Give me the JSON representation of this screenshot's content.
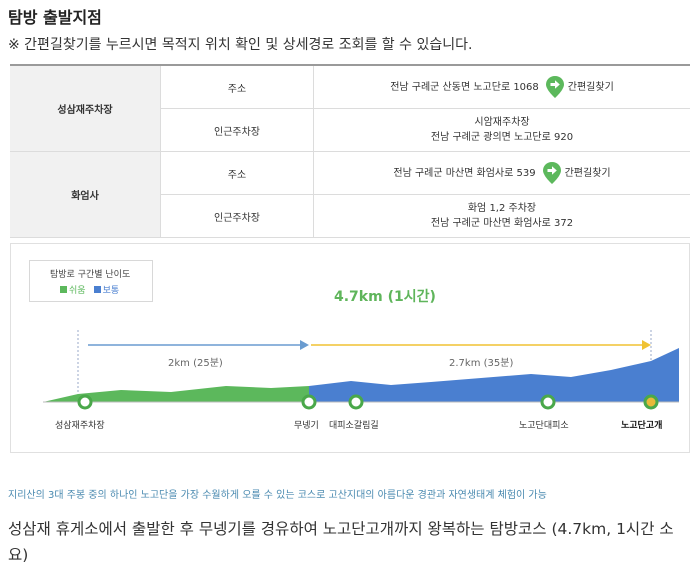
{
  "header": {
    "title": "탐방 출발지점",
    "notice": "※ 간편길찾기를 누르시면 목적지 위치 확인 및 상세경로 조회를 할 수 있습니다."
  },
  "parking": {
    "lots": [
      {
        "name": "성삼재주차장",
        "address_label": "주소",
        "address": "전남 구례군 산동면 노고단로 1068",
        "nav_label": "간편길찾기",
        "nearby_label": "인근주차장",
        "nearby_line1": "시암재주차장",
        "nearby_line2": "전남 구례군 광의면 노고단로 920"
      },
      {
        "name": "화엄사",
        "address_label": "주소",
        "address": "전남 구례군 마산면 화엄사로 539",
        "nav_label": "간편길찾기",
        "nearby_label": "인근주차장",
        "nearby_line1": "화엄 1,2 주차장",
        "nearby_line2": "전남 구례군 마산면 화엄사로 372"
      }
    ]
  },
  "difficulty": {
    "legend_title": "탐방로 구간별 난이도",
    "easy_label": "쉬움",
    "normal_label": "보통",
    "easy_color": "#5cb85c",
    "normal_color": "#4a7fd0",
    "total": "4.7km (1시간)",
    "segment1": "2km (25분)",
    "segment2": "2.7km (35분)",
    "points": [
      "성삼재주차장",
      "무넹기",
      "대피소갈림길",
      "노고단대피소",
      "노고단고개"
    ]
  },
  "description": {
    "highlight": "지리산의 3대 주봉 중의 하나인 노고단을 가장 수월하게 오를 수 있는 코스로 고산지대의 아름다운 경관과 자연생태계 체험이 가능",
    "summary": "성삼재 휴게소에서 출발한 후 무넹기를 경유하여 노고단고개까지 왕복하는 탐방코스 (4.7km, 1시간 소요)"
  }
}
